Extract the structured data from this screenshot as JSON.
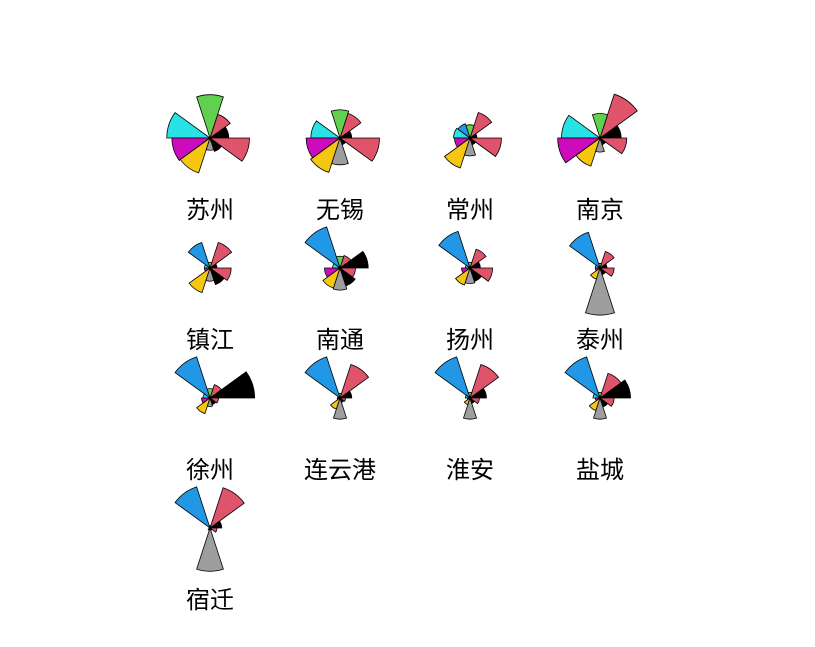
{
  "chart_data": {
    "type": "star-segments",
    "title": "",
    "segment_colors": [
      "#000000",
      "#DF536B",
      "#61D04F",
      "#2297E6",
      "#28E2E5",
      "#CD0BBC",
      "#F5C710",
      "#9E9E9E"
    ],
    "stars": [
      {
        "name": "苏州",
        "values": [
          0.4,
          0.53,
          0.92,
          0.0,
          0.92,
          0.81,
          0.78,
          0.26,
          0.3,
          0.84
        ]
      },
      {
        "name": "无锡",
        "values": [
          0.25,
          0.55,
          0.6,
          0.0,
          0.62,
          0.72,
          0.77,
          0.57,
          0.15,
          0.84
        ]
      },
      {
        "name": "常州",
        "values": [
          0.15,
          0.57,
          0.28,
          0.32,
          0.35,
          0.33,
          0.67,
          0.38,
          0.15,
          0.67
        ]
      },
      {
        "name": "南京",
        "values": [
          0.45,
          0.98,
          0.52,
          0.0,
          0.82,
          0.9,
          0.63,
          0.3,
          0.15,
          0.57
        ]
      },
      {
        "name": "镇江",
        "values": [
          0.15,
          0.57,
          0.12,
          0.57,
          0.12,
          0.12,
          0.55,
          0.28,
          0.37,
          0.45
        ]
      },
      {
        "name": "南通",
        "values": [
          0.6,
          0.28,
          0.25,
          0.92,
          0.16,
          0.33,
          0.45,
          0.47,
          0.4,
          0.33
        ]
      },
      {
        "name": "扬州",
        "values": [
          0.22,
          0.42,
          0.12,
          0.82,
          0.1,
          0.18,
          0.38,
          0.33,
          0.3,
          0.48
        ]
      },
      {
        "name": "泰州",
        "values": [
          0.15,
          0.37,
          0.1,
          0.8,
          0.1,
          0.1,
          0.25,
          1.0,
          0.15,
          0.3
        ]
      },
      {
        "name": "徐州",
        "values": [
          0.95,
          0.3,
          0.2,
          0.92,
          0.15,
          0.18,
          0.35,
          0.18,
          0.15,
          0.18
        ]
      },
      {
        "name": "连云港",
        "values": [
          0.25,
          0.75,
          0.1,
          0.92,
          0.05,
          0.06,
          0.25,
          0.45,
          0.1,
          0.12
        ]
      },
      {
        "name": "淮安",
        "values": [
          0.35,
          0.75,
          0.12,
          0.92,
          0.1,
          0.06,
          0.15,
          0.45,
          0.12,
          0.2
        ]
      },
      {
        "name": "盐城",
        "values": [
          0.65,
          0.55,
          0.12,
          0.92,
          0.15,
          0.1,
          0.28,
          0.45,
          0.2,
          0.3
        ]
      },
      {
        "name": "宿迁",
        "values": [
          0.25,
          0.9,
          0.05,
          0.92,
          0.02,
          0.02,
          0.05,
          0.92,
          0.05,
          0.15
        ]
      }
    ]
  }
}
